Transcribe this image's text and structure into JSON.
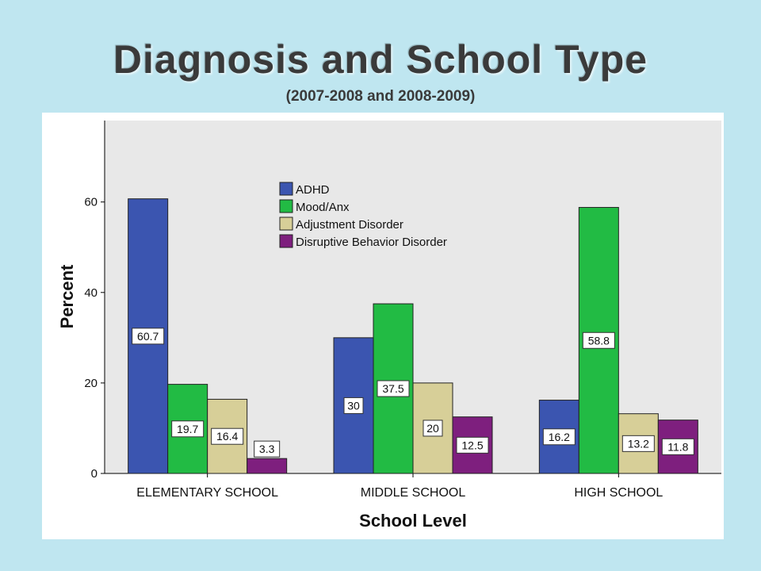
{
  "slide": {
    "title": "Diagnosis and School Type",
    "subtitle": "(2007-2008 and 2008-2009)"
  },
  "chart_data": {
    "type": "bar",
    "categories": [
      "ELEMENTARY SCHOOL",
      "MIDDLE SCHOOL",
      "HIGH SCHOOL"
    ],
    "series": [
      {
        "name": "ADHD",
        "color": "#3b55b0",
        "values": [
          60.7,
          30,
          16.2
        ],
        "labels": [
          "60.7",
          "30",
          "16.2"
        ]
      },
      {
        "name": "Mood/Anx",
        "color": "#22bb44",
        "values": [
          19.7,
          37.5,
          58.8
        ],
        "labels": [
          "19.7",
          "37.5",
          "58.8"
        ]
      },
      {
        "name": "Adjustment Disorder",
        "color": "#d7cf98",
        "values": [
          16.4,
          20,
          13.2
        ],
        "labels": [
          "16.4",
          "20",
          "13.2"
        ]
      },
      {
        "name": "Disruptive Behavior Disorder",
        "color": "#7e1f7e",
        "values": [
          3.3,
          12.5,
          11.8
        ],
        "labels": [
          "3.3",
          "12.5",
          "11.8"
        ]
      }
    ],
    "xlabel": "School Level",
    "ylabel": "Percent",
    "ylim": [
      0,
      78
    ],
    "yticks": [
      0,
      20,
      40,
      60
    ],
    "grid": false,
    "legend": "top-center",
    "plot_background": "#e8e8e8"
  }
}
